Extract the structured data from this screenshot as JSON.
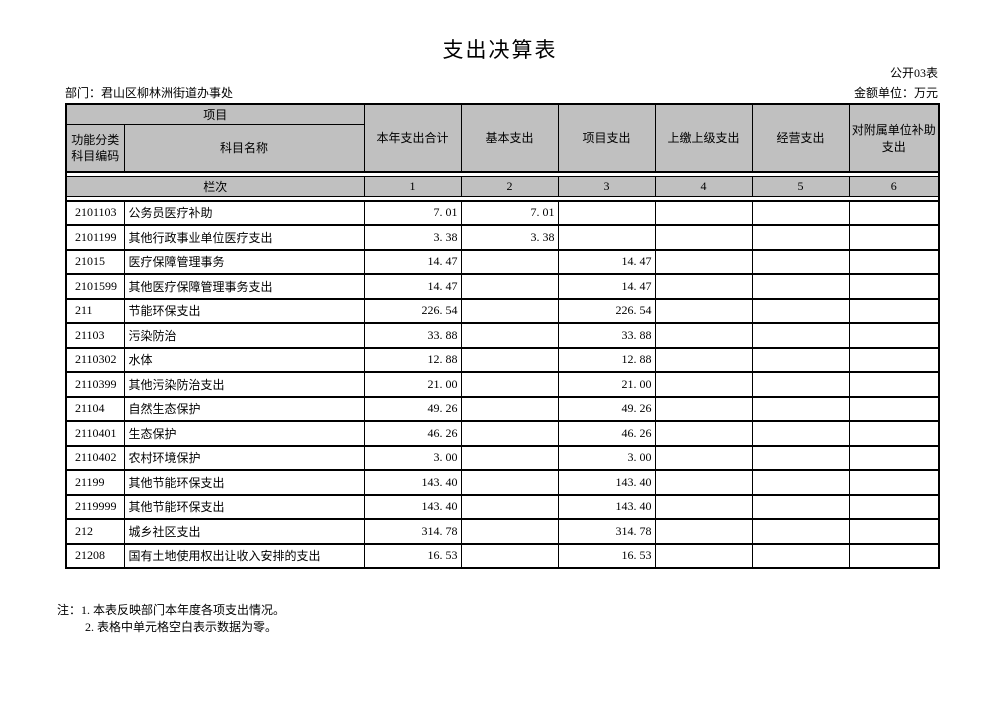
{
  "page": {
    "title": "支出决算表",
    "public_table_code": "公开03表",
    "department_line": "部门：君山区柳林洲街道办事处",
    "unit_line": "金额单位：万元"
  },
  "table": {
    "header": {
      "item_group": "项目",
      "code_column": "功能分类科目编码",
      "name_column": "科目名称",
      "value_columns": [
        "本年支出合计",
        "基本支出",
        "项目支出",
        "上缴上级支出",
        "经营支出",
        "对附属单位补助支出"
      ],
      "rank_label": "栏次",
      "rank_numbers": [
        "1",
        "2",
        "3",
        "4",
        "5",
        "6"
      ]
    },
    "rows": [
      {
        "code": "2101103",
        "name": "公务员医疗补助",
        "values": [
          "7.01",
          "7.01",
          "",
          "",
          "",
          ""
        ]
      },
      {
        "code": "2101199",
        "name": "其他行政事业单位医疗支出",
        "values": [
          "3.38",
          "3.38",
          "",
          "",
          "",
          ""
        ]
      },
      {
        "code": "21015",
        "name": "医疗保障管理事务",
        "values": [
          "14.47",
          "",
          "14.47",
          "",
          "",
          ""
        ]
      },
      {
        "code": "2101599",
        "name": "其他医疗保障管理事务支出",
        "values": [
          "14.47",
          "",
          "14.47",
          "",
          "",
          ""
        ]
      },
      {
        "code": "211",
        "name": "节能环保支出",
        "values": [
          "226.54",
          "",
          "226.54",
          "",
          "",
          ""
        ]
      },
      {
        "code": "21103",
        "name": "污染防治",
        "values": [
          "33.88",
          "",
          "33.88",
          "",
          "",
          ""
        ]
      },
      {
        "code": "2110302",
        "name": "水体",
        "values": [
          "12.88",
          "",
          "12.88",
          "",
          "",
          ""
        ]
      },
      {
        "code": "2110399",
        "name": "其他污染防治支出",
        "values": [
          "21.00",
          "",
          "21.00",
          "",
          "",
          ""
        ]
      },
      {
        "code": "21104",
        "name": "自然生态保护",
        "values": [
          "49.26",
          "",
          "49.26",
          "",
          "",
          ""
        ]
      },
      {
        "code": "2110401",
        "name": "生态保护",
        "values": [
          "46.26",
          "",
          "46.26",
          "",
          "",
          ""
        ]
      },
      {
        "code": "2110402",
        "name": "农村环境保护",
        "values": [
          "3.00",
          "",
          "3.00",
          "",
          "",
          ""
        ]
      },
      {
        "code": "21199",
        "name": "其他节能环保支出",
        "values": [
          "143.40",
          "",
          "143.40",
          "",
          "",
          ""
        ]
      },
      {
        "code": "2119999",
        "name": "其他节能环保支出",
        "values": [
          "143.40",
          "",
          "143.40",
          "",
          "",
          ""
        ]
      },
      {
        "code": "212",
        "name": "城乡社区支出",
        "values": [
          "314.78",
          "",
          "314.78",
          "",
          "",
          ""
        ]
      },
      {
        "code": "21208",
        "name": "国有土地使用权出让收入安排的支出",
        "values": [
          "16.53",
          "",
          "16.53",
          "",
          "",
          ""
        ]
      }
    ]
  },
  "notes": [
    "注：1. 本表反映部门本年度各项支出情况。",
    "2. 表格中单元格空白表示数据为零。"
  ],
  "colors": {
    "header_fill": "#c0c0c0",
    "border": "#000000",
    "background": "#ffffff"
  }
}
